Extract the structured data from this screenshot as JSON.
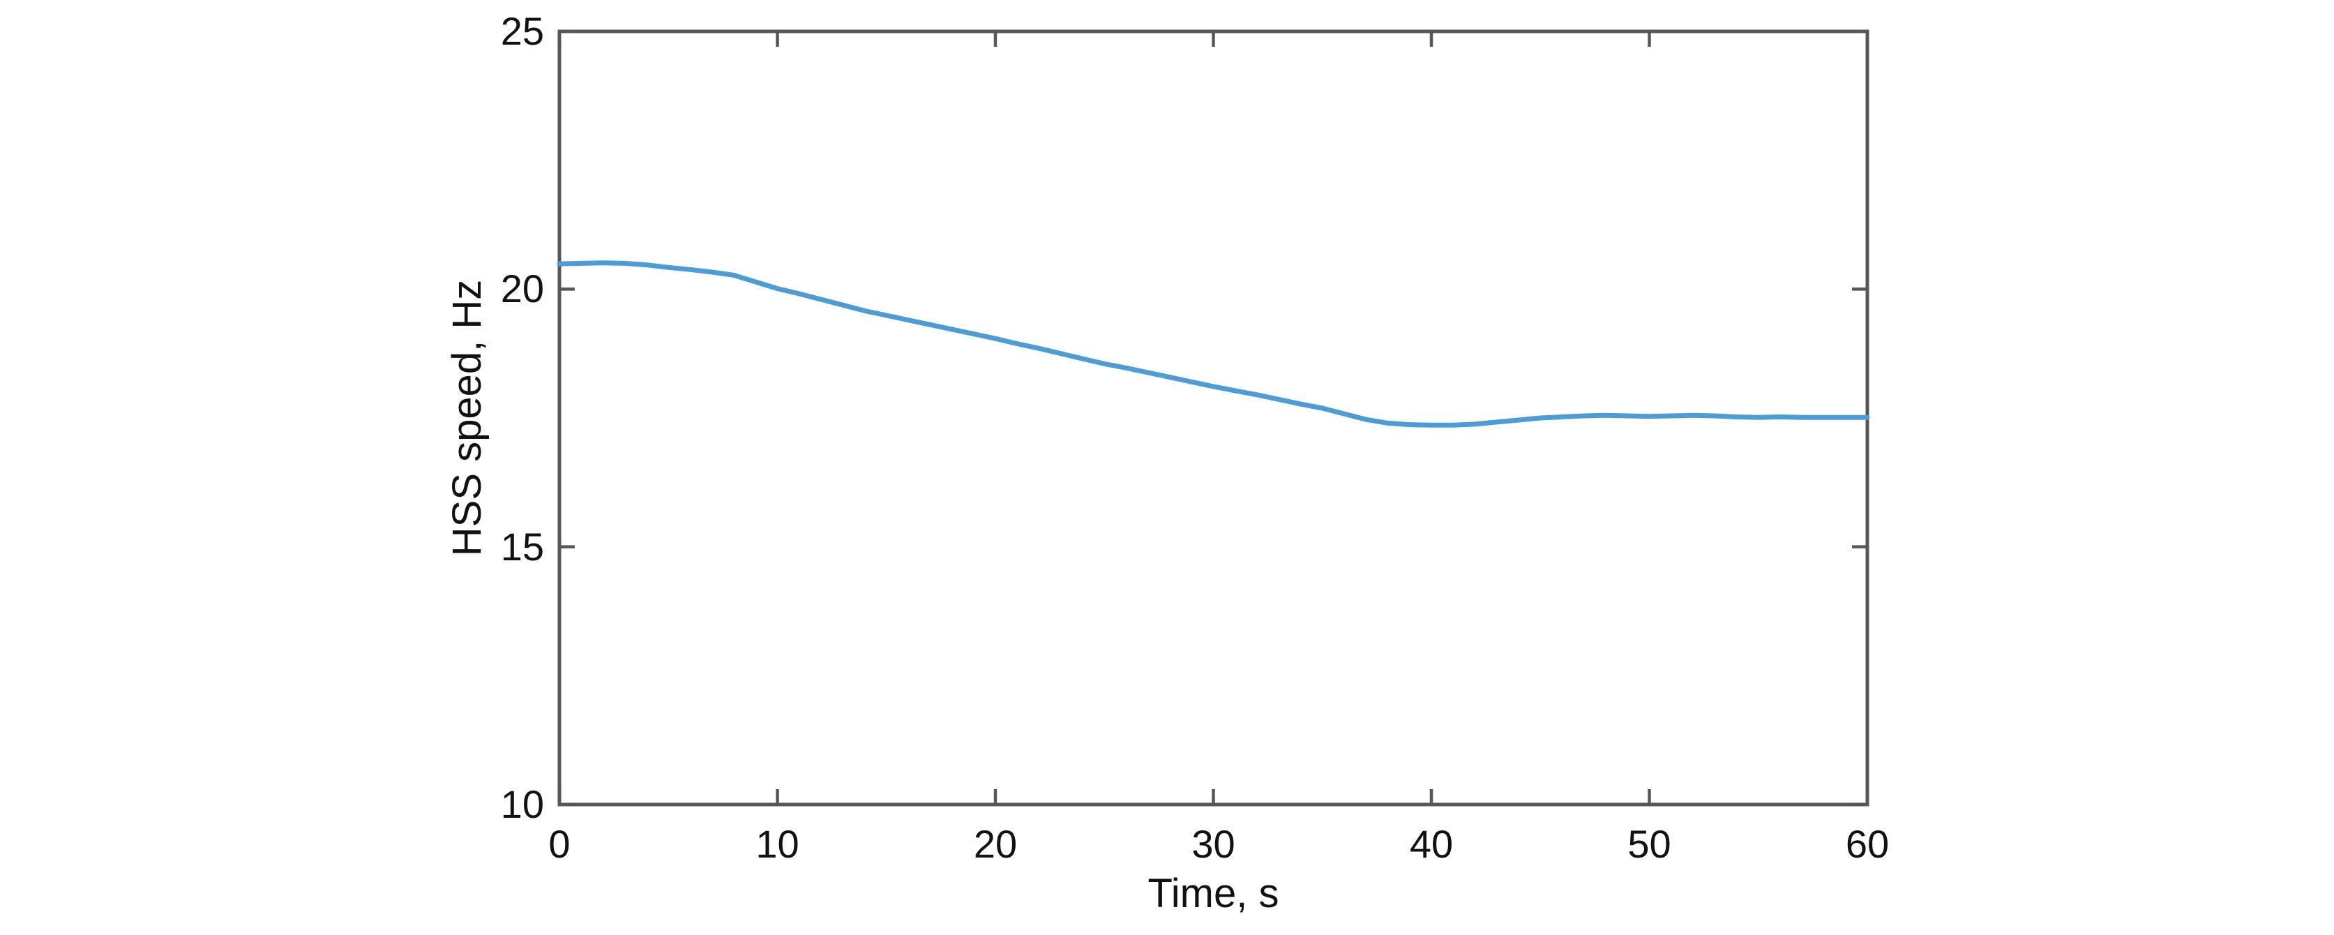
{
  "figure": {
    "background_color": "#ffffff",
    "axis_color": "#56575a",
    "tick_label_color": "#111111",
    "axis_label_color": "#111111"
  },
  "chart_data": {
    "type": "line",
    "title": "",
    "xlabel": "Time, s",
    "ylabel": "HSS speed, Hz",
    "xlim": [
      0,
      60
    ],
    "ylim": [
      10,
      25
    ],
    "xticks": [
      0,
      10,
      20,
      30,
      40,
      50,
      60
    ],
    "yticks": [
      10,
      15,
      20,
      25
    ],
    "grid": false,
    "box": true,
    "tick_direction": "in",
    "legend_position": "none",
    "series": [
      {
        "name": "HSS speed",
        "color": "#4d9cd6",
        "x": [
          0,
          1,
          2,
          3,
          4,
          5,
          6,
          7,
          8,
          9,
          10,
          11,
          12,
          13,
          14,
          15,
          16,
          17,
          18,
          19,
          20,
          21,
          22,
          23,
          24,
          25,
          26,
          27,
          28,
          29,
          30,
          31,
          32,
          33,
          34,
          35,
          36,
          37,
          38,
          39,
          40,
          41,
          42,
          43,
          44,
          45,
          46,
          47,
          48,
          49,
          50,
          51,
          52,
          53,
          54,
          55,
          56,
          57,
          58,
          59,
          60
        ],
        "y": [
          20.49,
          20.5,
          20.51,
          20.5,
          20.47,
          20.42,
          20.38,
          20.33,
          20.27,
          20.14,
          20.01,
          19.91,
          19.8,
          19.69,
          19.58,
          19.49,
          19.4,
          19.31,
          19.22,
          19.13,
          19.04,
          18.94,
          18.85,
          18.75,
          18.65,
          18.55,
          18.47,
          18.38,
          18.29,
          18.2,
          18.11,
          18.03,
          17.95,
          17.86,
          17.77,
          17.69,
          17.58,
          17.47,
          17.4,
          17.37,
          17.36,
          17.36,
          17.38,
          17.42,
          17.46,
          17.5,
          17.52,
          17.54,
          17.55,
          17.54,
          17.53,
          17.54,
          17.55,
          17.54,
          17.52,
          17.51,
          17.52,
          17.51,
          17.51,
          17.51,
          17.51
        ]
      }
    ]
  }
}
